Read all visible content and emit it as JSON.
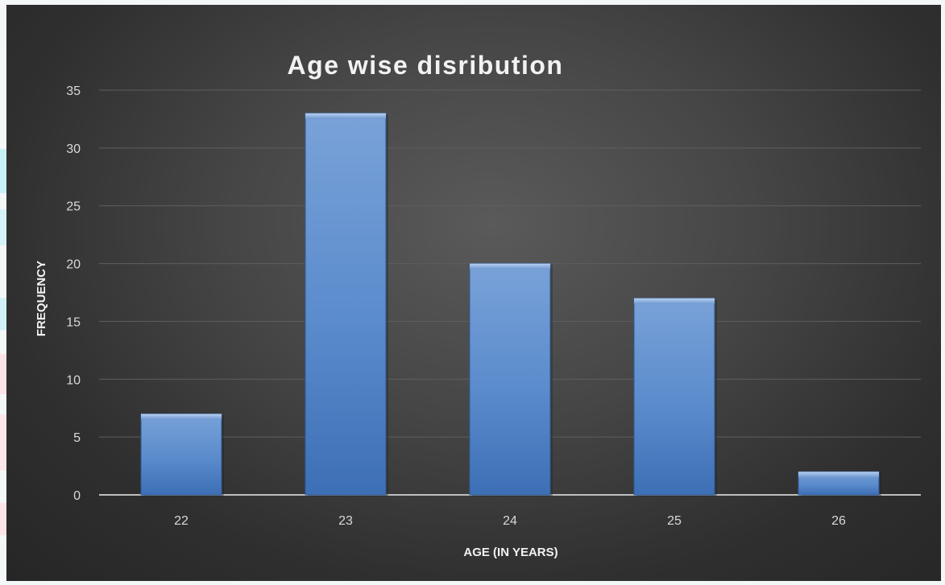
{
  "chart_data": {
    "type": "bar",
    "title": "Age wise disribution",
    "xlabel": "AGE (IN YEARS)",
    "ylabel": "FREQUENCY",
    "categories": [
      "22",
      "23",
      "24",
      "25",
      "26"
    ],
    "values": [
      7,
      33,
      20,
      17,
      2
    ],
    "ylim": [
      0,
      35
    ],
    "yticks": [
      "0",
      "5",
      "10",
      "15",
      "20",
      "25",
      "30",
      "35"
    ],
    "grid": true,
    "legend": "none"
  },
  "colors": {
    "bar_fill": "#4f81bd",
    "bar_highlight": "#86aee0",
    "background": "#3d3d3d",
    "gridline": "#5e5e5e",
    "axis_line": "#bfbfbf",
    "text": "#d9d9d9"
  }
}
